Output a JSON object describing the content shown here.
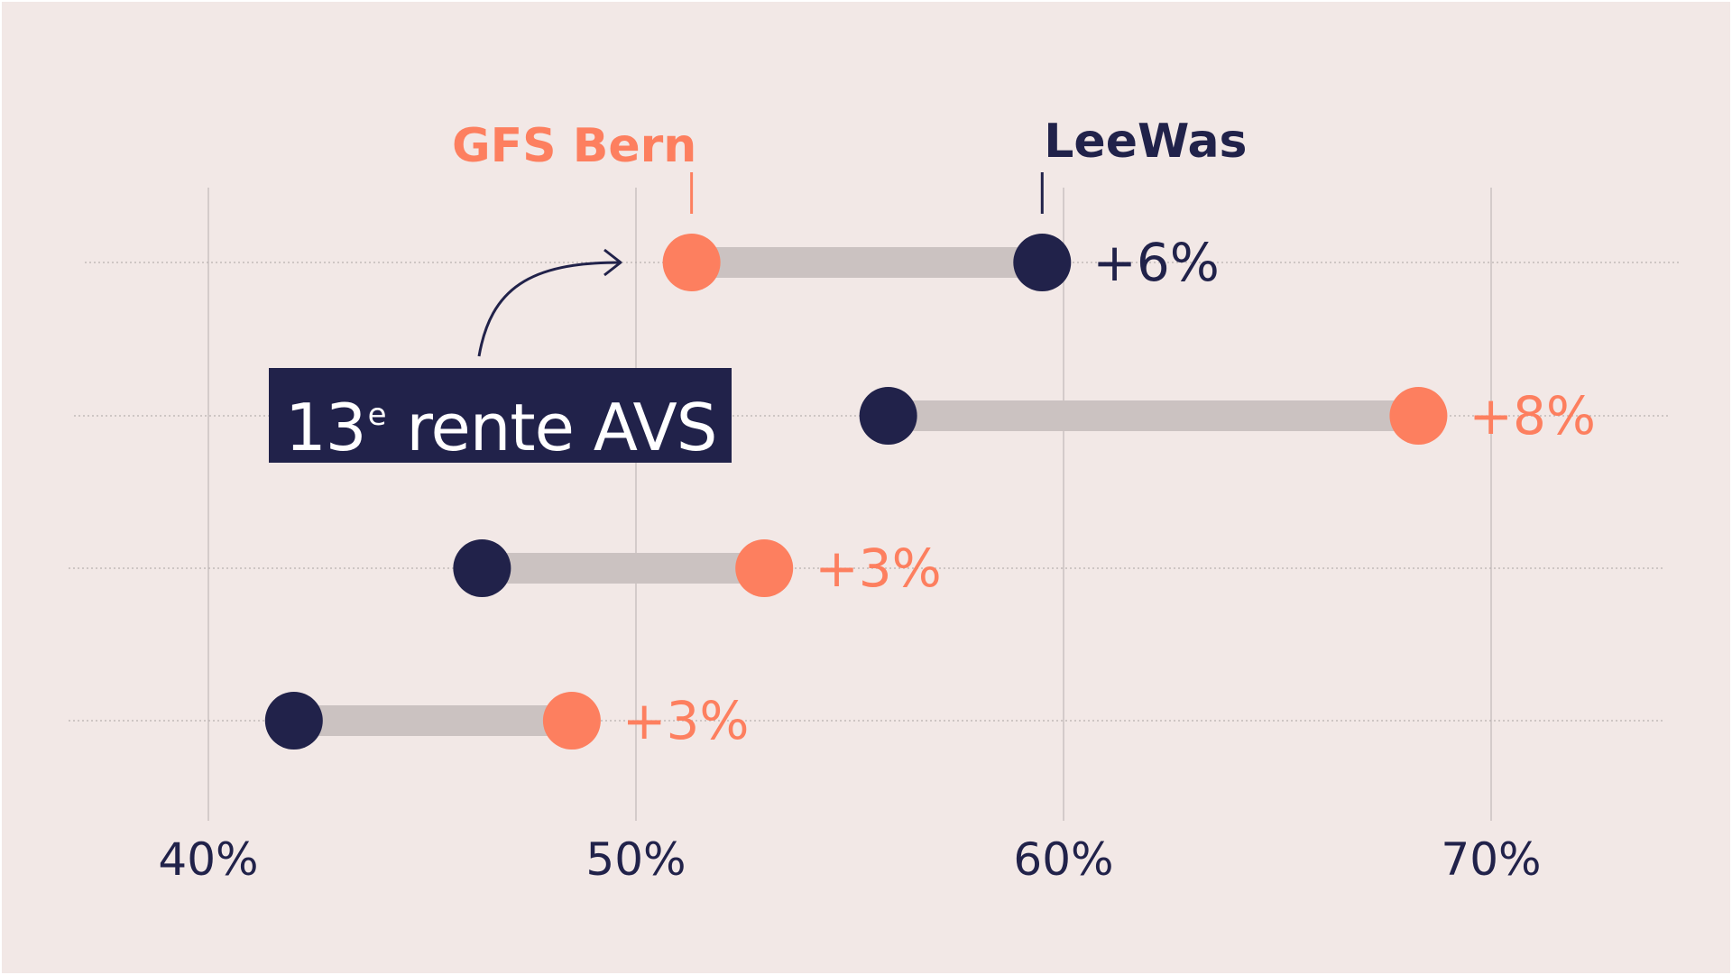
{
  "chart_data": {
    "type": "dumbbell",
    "title": "",
    "xlabel": "",
    "ylabel": "",
    "xlim": [
      37.1,
      75.1
    ],
    "x_ticks": [
      40,
      50,
      60,
      70
    ],
    "x_tick_labels": [
      "40%",
      "50%",
      "60%",
      "70%"
    ],
    "grid": "vertical",
    "legend": [
      {
        "name": "GFS Bern",
        "color": "#fd7f5f"
      },
      {
        "name": "LeeWas",
        "color": "#21224a"
      }
    ],
    "rows": [
      {
        "gfs_bern": 51.3,
        "leewas": 59.5,
        "delta_label": "+6%",
        "label_series": "LeeWas"
      },
      {
        "gfs_bern": 68.3,
        "leewas": 55.9,
        "delta_label": "+8%",
        "label_series": "GFS Bern"
      },
      {
        "gfs_bern": 53.0,
        "leewas": 46.4,
        "delta_label": "+3%",
        "label_series": "GFS Bern"
      },
      {
        "gfs_bern": 48.5,
        "leewas": 42.0,
        "delta_label": "+3%",
        "label_series": "GFS Bern"
      }
    ],
    "annotation": {
      "text": "13",
      "superscript": "e",
      "text_after": " rente AVS",
      "row": 0
    }
  },
  "colors": {
    "background": "#f2e8e6",
    "gfs_bern": "#fd7f5f",
    "leewas": "#21224a",
    "connector": "#cbc2c1",
    "gridline": "#c9c1c0",
    "row_line": "#b9b1b0"
  }
}
